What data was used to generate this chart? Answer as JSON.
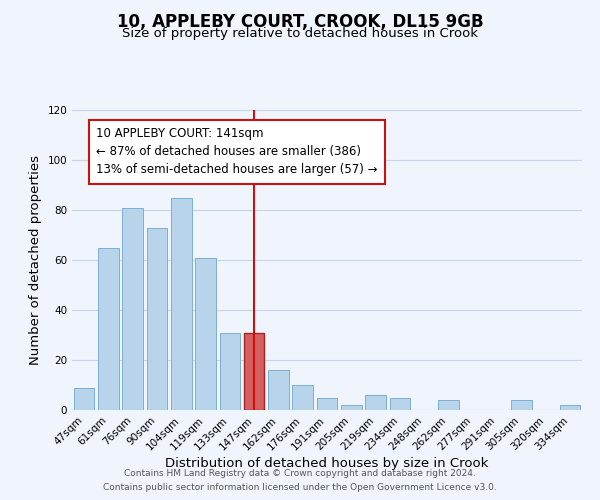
{
  "title": "10, APPLEBY COURT, CROOK, DL15 9GB",
  "subtitle": "Size of property relative to detached houses in Crook",
  "xlabel": "Distribution of detached houses by size in Crook",
  "ylabel": "Number of detached properties",
  "bar_labels": [
    "47sqm",
    "61sqm",
    "76sqm",
    "90sqm",
    "104sqm",
    "119sqm",
    "133sqm",
    "147sqm",
    "162sqm",
    "176sqm",
    "191sqm",
    "205sqm",
    "219sqm",
    "234sqm",
    "248sqm",
    "262sqm",
    "277sqm",
    "291sqm",
    "305sqm",
    "320sqm",
    "334sqm"
  ],
  "bar_heights": [
    9,
    65,
    81,
    73,
    85,
    61,
    31,
    31,
    16,
    10,
    5,
    2,
    6,
    5,
    0,
    4,
    0,
    0,
    4,
    0,
    2
  ],
  "bar_color": "#b8d4ea",
  "bar_edge_color": "#7aafd4",
  "highlight_bar_index": 7,
  "highlight_color": "#d46060",
  "highlight_edge_color": "#aa2222",
  "vline_color": "#cc1111",
  "annotation_title": "10 APPLEBY COURT: 141sqm",
  "annotation_line1": "← 87% of detached houses are smaller (386)",
  "annotation_line2": "13% of semi-detached houses are larger (57) →",
  "annotation_box_color": "#ffffff",
  "annotation_box_edge": "#cc1111",
  "ylim": [
    0,
    120
  ],
  "yticks": [
    0,
    20,
    40,
    60,
    80,
    100,
    120
  ],
  "footer1": "Contains HM Land Registry data © Crown copyright and database right 2024.",
  "footer2": "Contains public sector information licensed under the Open Government Licence v3.0.",
  "bg_color": "#f0f4fc",
  "grid_color": "#c8d4e8",
  "title_fontsize": 12,
  "subtitle_fontsize": 9.5,
  "axis_label_fontsize": 9.5,
  "tick_fontsize": 7.5,
  "annotation_fontsize": 8.5,
  "footer_fontsize": 6.5
}
